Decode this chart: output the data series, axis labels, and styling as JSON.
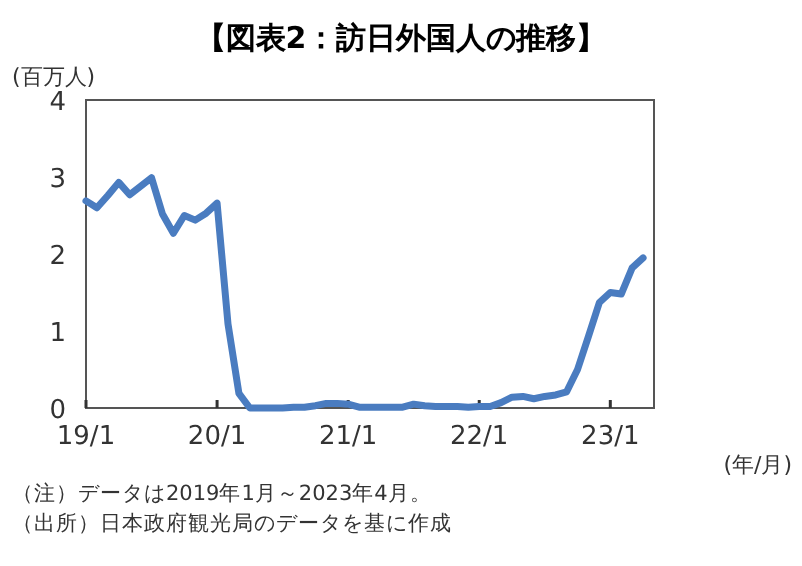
{
  "chart_data": {
    "type": "line",
    "title": "【図表2：訪日外国人の推移】",
    "ylabel": "(百万人)",
    "xlabel": "(年/月)",
    "annotations": [
      "（注）データは2019年1月～2023年4月。",
      "（出所）日本政府観光局のデータを基に作成"
    ],
    "x": [
      "2019-01",
      "2019-02",
      "2019-03",
      "2019-04",
      "2019-05",
      "2019-06",
      "2019-07",
      "2019-08",
      "2019-09",
      "2019-10",
      "2019-11",
      "2019-12",
      "2020-01",
      "2020-02",
      "2020-03",
      "2020-04",
      "2020-05",
      "2020-06",
      "2020-07",
      "2020-08",
      "2020-09",
      "2020-10",
      "2020-11",
      "2020-12",
      "2021-01",
      "2021-02",
      "2021-03",
      "2021-04",
      "2021-05",
      "2021-06",
      "2021-07",
      "2021-08",
      "2021-09",
      "2021-10",
      "2021-11",
      "2021-12",
      "2022-01",
      "2022-02",
      "2022-03",
      "2022-04",
      "2022-05",
      "2022-06",
      "2022-07",
      "2022-08",
      "2022-09",
      "2022-10",
      "2022-11",
      "2022-12",
      "2023-01",
      "2023-02",
      "2023-03",
      "2023-04"
    ],
    "series": [
      {
        "color": "#4a7cc0",
        "values": [
          2.69,
          2.6,
          2.76,
          2.93,
          2.77,
          2.88,
          2.99,
          2.52,
          2.27,
          2.5,
          2.44,
          2.53,
          2.66,
          1.09,
          0.19,
          0.0,
          0.0,
          0.0,
          0.0,
          0.01,
          0.01,
          0.03,
          0.06,
          0.06,
          0.05,
          0.01,
          0.01,
          0.01,
          0.01,
          0.01,
          0.05,
          0.03,
          0.02,
          0.02,
          0.02,
          0.01,
          0.02,
          0.02,
          0.07,
          0.14,
          0.15,
          0.12,
          0.15,
          0.17,
          0.21,
          0.5,
          0.93,
          1.37,
          1.5,
          1.48,
          1.82,
          1.95
        ]
      }
    ],
    "xlim": [
      "2019-01",
      "2023-05"
    ],
    "xticks": [
      {
        "value": "2019-01",
        "label": "19/1"
      },
      {
        "value": "2020-01",
        "label": "20/1"
      },
      {
        "value": "2021-01",
        "label": "21/1"
      },
      {
        "value": "2022-01",
        "label": "22/1"
      },
      {
        "value": "2023-01",
        "label": "23/1"
      }
    ],
    "ylim": [
      0,
      4
    ],
    "yticks": [
      0,
      1,
      2,
      3,
      4
    ]
  }
}
